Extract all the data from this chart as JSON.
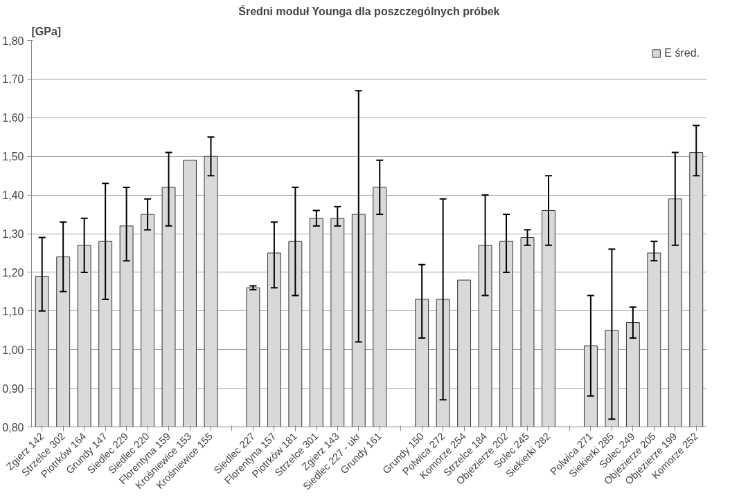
{
  "chart_data": {
    "type": "bar",
    "title": "Średni moduł Younga dla poszczególnych próbek",
    "ylabel": "[GPa]",
    "categories": [
      "Zgierz 142",
      "Strzelce 302",
      "Piotrków 164",
      "Grundy 147",
      "Siedlec 229",
      "Siedlec 220",
      "Florentyna 159",
      "Krośniewice 153",
      "Krośniewice 155",
      null,
      "Siedlec 227",
      "Florentyna 157",
      "Piotrków 181",
      "Strzelce 301",
      "Zgierz 143",
      "Siedlec 227 - ukr",
      "Grundy 161",
      null,
      "Grundy 150",
      "Polwica 272",
      "Komorze 254",
      "Strzelce 184",
      "Objezierze 202",
      "Solec 245",
      "Siekierki 282",
      null,
      "Polwica 271",
      "Siekierki 285",
      "Solec 249",
      "Objezierze 205",
      "Objezierze 199",
      "Komorze 252"
    ],
    "series": [
      {
        "name": "E śred.",
        "color": "#d9d9d9",
        "values": [
          1.19,
          1.24,
          1.27,
          1.28,
          1.32,
          1.35,
          1.42,
          1.49,
          1.5,
          null,
          1.16,
          1.25,
          1.28,
          1.34,
          1.34,
          1.35,
          1.42,
          null,
          1.13,
          1.13,
          1.18,
          1.27,
          1.28,
          1.29,
          1.36,
          null,
          1.01,
          1.05,
          1.07,
          1.25,
          1.39,
          1.51
        ],
        "errors": [
          [
            1.1,
            1.29
          ],
          [
            1.15,
            1.33
          ],
          [
            1.2,
            1.34
          ],
          [
            1.13,
            1.43
          ],
          [
            1.23,
            1.42
          ],
          [
            1.31,
            1.39
          ],
          [
            1.32,
            1.51
          ],
          null,
          [
            1.45,
            1.55
          ],
          null,
          [
            1.155,
            1.165
          ],
          [
            1.16,
            1.33
          ],
          [
            1.14,
            1.42
          ],
          [
            1.32,
            1.36
          ],
          [
            1.32,
            1.37
          ],
          [
            1.02,
            1.67
          ],
          [
            1.35,
            1.49
          ],
          null,
          [
            1.03,
            1.22
          ],
          [
            0.87,
            1.39
          ],
          null,
          [
            1.14,
            1.4
          ],
          [
            1.2,
            1.35
          ],
          [
            1.27,
            1.31
          ],
          [
            1.27,
            1.45
          ],
          null,
          [
            0.88,
            1.14
          ],
          [
            0.82,
            1.26
          ],
          [
            1.03,
            1.11
          ],
          [
            1.23,
            1.28
          ],
          [
            1.27,
            1.51
          ],
          [
            1.45,
            1.58
          ]
        ]
      }
    ],
    "ylim": [
      0.8,
      1.8
    ],
    "yticks": [
      {
        "value": 0.8,
        "label": "0,80"
      },
      {
        "value": 0.9,
        "label": "0,90"
      },
      {
        "value": 1.0,
        "label": "1,00"
      },
      {
        "value": 1.1,
        "label": "1,10"
      },
      {
        "value": 1.2,
        "label": "1,20"
      },
      {
        "value": 1.3,
        "label": "1,30"
      },
      {
        "value": 1.4,
        "label": "1,40"
      },
      {
        "value": 1.5,
        "label": "1,50"
      },
      {
        "value": 1.6,
        "label": "1,60"
      },
      {
        "value": 1.7,
        "label": "1,70"
      },
      {
        "value": 1.8,
        "label": "1,80"
      }
    ],
    "grid": "y",
    "legend": "top right"
  }
}
